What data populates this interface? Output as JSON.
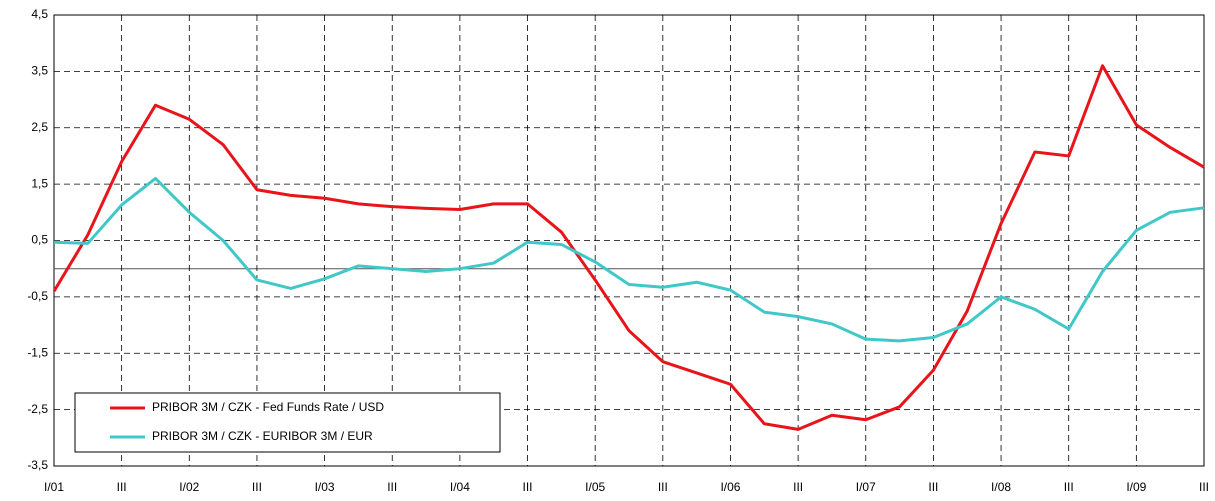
{
  "chart_data": {
    "type": "line",
    "categories": [
      "I/01",
      null,
      "III",
      null,
      "I/02",
      null,
      "III",
      null,
      "I/03",
      null,
      "III",
      null,
      "I/04",
      null,
      "III",
      null,
      "I/05",
      null,
      "III",
      null,
      "I/06",
      null,
      "III",
      null,
      "I/07",
      null,
      "III",
      null,
      "I/08",
      null,
      "III",
      null,
      "I/09",
      null,
      "III"
    ],
    "series": [
      {
        "name": "PRIBOR 3M / CZK - Fed Funds Rate / USD",
        "color": "#e8141a",
        "values": [
          -0.4,
          0.6,
          1.9,
          2.9,
          2.65,
          2.2,
          1.4,
          1.3,
          1.25,
          1.15,
          1.1,
          1.07,
          1.05,
          1.15,
          1.15,
          0.65,
          -0.2,
          -1.1,
          -1.65,
          -1.85,
          -2.05,
          -2.75,
          -2.85,
          -2.6,
          -2.68,
          -2.45,
          -1.8,
          -0.75,
          0.8,
          2.07,
          2.0,
          3.6,
          2.55,
          2.15,
          1.8
        ]
      },
      {
        "name": "PRIBOR 3M / CZK - EURIBOR 3M / EUR",
        "color": "#40c8c8",
        "values": [
          0.47,
          0.45,
          1.13,
          1.6,
          1.0,
          0.5,
          -0.2,
          -0.35,
          -0.18,
          0.05,
          0.0,
          -0.05,
          0.0,
          0.1,
          0.47,
          0.43,
          0.12,
          -0.28,
          -0.33,
          -0.24,
          -0.38,
          -0.77,
          -0.85,
          -0.98,
          -1.25,
          -1.28,
          -1.22,
          -0.98,
          -0.5,
          -0.72,
          -1.07,
          -0.05,
          0.68,
          1.0,
          1.08
        ]
      }
    ],
    "ylim": [
      -3.5,
      4.5
    ],
    "yticks": [
      {
        "value": -3.5,
        "label": "-3,5"
      },
      {
        "value": -2.5,
        "label": "-2,5"
      },
      {
        "value": -1.5,
        "label": "-1,5"
      },
      {
        "value": -0.5,
        "label": "-0,5"
      },
      {
        "value": 0.5,
        "label": "0,5"
      },
      {
        "value": 1.5,
        "label": "1,5"
      },
      {
        "value": 2.5,
        "label": "2,5"
      },
      {
        "value": 3.5,
        "label": "3,5"
      },
      {
        "value": 4.5,
        "label": "4,5"
      }
    ],
    "grid": true,
    "legend": "lower left"
  }
}
